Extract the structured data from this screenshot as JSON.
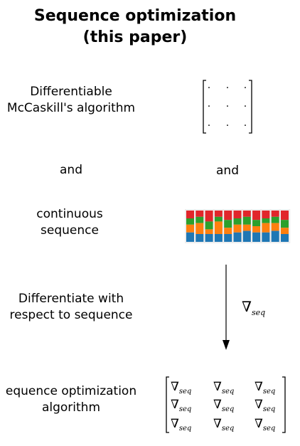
{
  "title": {
    "line1": "Sequence optimization",
    "line2": "(this paper)"
  },
  "rows": {
    "mccaskill": {
      "line1": "Differentiable",
      "line2": "McCaskill's algorithm"
    },
    "and_left": "and",
    "and_right": "and",
    "continuous": {
      "line1": "continuous",
      "line2": "sequence"
    },
    "differentiate": {
      "line1": "Differentiate with",
      "line2": "respect to sequence"
    },
    "optimization": {
      "line1": "equence optimization",
      "line2": "algorithm"
    }
  },
  "gradient": {
    "symbol": "∇",
    "subscript": "seq"
  },
  "matrix_cells": [
    [
      "·",
      "·",
      "·"
    ],
    [
      "·",
      "·",
      "·"
    ],
    [
      "·",
      "·",
      "·"
    ]
  ],
  "sequence_colors": {
    "red": "#e1262b",
    "green": "#2ca02c",
    "orange": "#ff7f0e",
    "blue": "#1f77b4"
  },
  "sequence_columns": [
    [
      0.25,
      0.2,
      0.25,
      0.3
    ],
    [
      0.2,
      0.2,
      0.35,
      0.25
    ],
    [
      0.35,
      0.25,
      0.15,
      0.25
    ],
    [
      0.2,
      0.15,
      0.4,
      0.25
    ],
    [
      0.3,
      0.25,
      0.2,
      0.25
    ],
    [
      0.25,
      0.2,
      0.25,
      0.3
    ],
    [
      0.2,
      0.25,
      0.2,
      0.35
    ],
    [
      0.3,
      0.2,
      0.2,
      0.3
    ],
    [
      0.25,
      0.15,
      0.3,
      0.3
    ],
    [
      0.2,
      0.2,
      0.25,
      0.35
    ],
    [
      0.3,
      0.25,
      0.2,
      0.25
    ]
  ]
}
